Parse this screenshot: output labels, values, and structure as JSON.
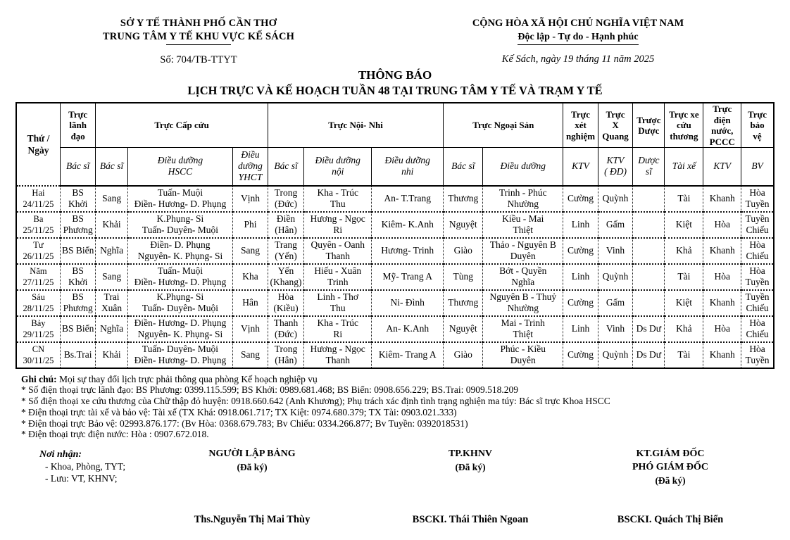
{
  "header": {
    "org_line1": "SỞ Y TẾ THÀNH PHỐ CẦN THƠ",
    "org_line2": "TRUNG TÂM Y TẾ KHU VỰC KẾ SÁCH",
    "doc_number": "Số:  704/TB-TTYT",
    "motto_line1": "CỘNG HÒA XÃ HỘI CHỦ NGHĨA VIỆT NAM",
    "motto_line2": "Độc lập - Tự do - Hạnh phúc",
    "date_line": "Kế Sách, ngày  19 tháng  11 năm 2025"
  },
  "title": {
    "line1": "THÔNG BÁO",
    "line2": "LỊCH TRỰC VÀ KẾ HOẠCH TUẦN 48 TẠI TRUNG TÂM Y TẾ VÀ TRẠM Y TẾ"
  },
  "table": {
    "col_day": "Thứ /\nNgày",
    "groups": [
      {
        "label": "Trực\nlãnh\nđạo",
        "cols": 1
      },
      {
        "label": "Trực Cấp cứu",
        "cols": 3
      },
      {
        "label": "Trực Nội- Nhi",
        "cols": 3
      },
      {
        "label": "Trực Ngoại Sản",
        "cols": 2
      },
      {
        "label": "Trực\nxét\nnghiệm",
        "cols": 1
      },
      {
        "label": "Trực\nX\nQuang",
        "cols": 1
      },
      {
        "label": "Trược\nDược",
        "cols": 1
      },
      {
        "label": "Trực xe\ncứu\nthương",
        "cols": 1
      },
      {
        "label": "Trực\nđiện\nnước,\nPCCC",
        "cols": 1
      },
      {
        "label": "Trực\nbảo\nvệ",
        "cols": 1
      }
    ],
    "subheads": [
      "Bác sĩ",
      "Bác sĩ",
      "Điều dưỡng\nHSCC",
      "Điều\ndưỡng\nYHCT",
      "Bác sĩ",
      "Điều dưỡng\nnội",
      "Điều dưỡng\nnhi",
      "Bác sĩ",
      "Điều dưỡng",
      "KTV",
      "KTV\n( ĐD)",
      "Dược\nsĩ",
      "Tài xế",
      "KTV",
      "BV"
    ],
    "rows": [
      {
        "day": "Hai\n24/11/25",
        "cells": [
          "BS\nKhởi",
          "Sang",
          "Tuấn- Muội\nĐiền- Hương- D. Phụng",
          "Vịnh",
          "Trong\n(Đức)",
          "Kha - Trúc\nThu",
          "An- T.Trang",
          "Thương",
          "Trinh - Phúc\nNhường",
          "Cường",
          "Quỳnh",
          "",
          "Tài",
          "Khanh",
          "Hòa\nTuyền"
        ]
      },
      {
        "day": "Ba\n25/11/25",
        "cells": [
          "BS\nPhương",
          "Khải",
          "K.Phụng- Si\nTuấn- Duyên- Muội",
          "Phi",
          "Điền\n(Hân)",
          "Hương - Ngọc\nRi",
          "Kiêm- K.Anh",
          "Nguyệt",
          "Kiều - Mai\nThiệt",
          "Linh",
          "Gấm",
          "",
          "Kiệt",
          "Hòa",
          "Tuyền\nChiếu"
        ]
      },
      {
        "day": "Tư\n26/11/25",
        "cells": [
          "BS Biển",
          "Nghĩa",
          "Điền- D. Phụng\nNguyên- K. Phụng- Si",
          "Sang",
          "Trang\n(Yến)",
          "Quyên - Oanh\nThanh",
          "Hương- Trinh",
          "Giào",
          "Thảo - Nguyên B\nDuyên",
          "Cường",
          "Vinh",
          "",
          "Khả",
          "Khanh",
          "Hòa\nChiếu"
        ]
      },
      {
        "day": "Năm\n27/11/25",
        "cells": [
          "BS\nKhởi",
          "Sang",
          "Tuấn- Muội\nĐiền- Hương- D. Phụng",
          "Kha",
          "Yến\n(Khang)",
          "Hiếu - Xuân\nTrinh",
          "Mỹ- Trang A",
          "Tùng",
          "Bớt - Quyền\nNghĩa",
          "Linh",
          "Quỳnh",
          "",
          "Tài",
          "Hòa",
          "Hòa\nTuyền"
        ]
      },
      {
        "day": "Sáu\n28/11/25",
        "cells": [
          "BS\nPhương",
          "Trai\nXuân",
          "K.Phụng- Si\nTuấn- Duyên- Muội",
          "Hân",
          "Hòa\n(Kiều)",
          "Linh - Thơ\nThu",
          "Ni- Đình",
          "Thương",
          "Nguyên B - Thuỷ\nNhường",
          "Cường",
          "Gấm",
          "",
          "Kiệt",
          "Khanh",
          "Tuyền\nChiếu"
        ]
      },
      {
        "day": "Bảy\n29/11/25",
        "cells": [
          "BS Biển",
          "Nghĩa",
          "Điền- Hương- D. Phụng\nNguyên- K. Phụng- Si",
          "Vịnh",
          "Thanh\n(Đức)",
          "Kha - Trúc\nRi",
          "An- K.Anh",
          "Nguyệt",
          "Mai - Trinh\nThiệt",
          "Linh",
          "Vinh",
          "Ds Dư",
          "Khả",
          "Hòa",
          "Hòa\nChiếu"
        ]
      },
      {
        "day": "CN\n30/11/25",
        "cells": [
          "Bs.Trai",
          "Khải",
          "Tuấn- Duyên- Muội\nĐiền- Hương- D. Phụng",
          "Sang",
          "Trong\n(Hân)",
          "Hương - Ngọc\nThanh",
          "Kiêm- Trang A",
          "Giào",
          "Phúc - Kiều\nDuyên",
          "Cường",
          "Quỳnh",
          "Ds Dư",
          "Tài",
          "Khanh",
          "Hòa\nTuyền"
        ]
      }
    ]
  },
  "notes": [
    {
      "bold": "Ghi chú:",
      "text": " Mọi sự thay đổi lịch trực phải thông qua phòng Kế hoạch nghiệp vụ"
    },
    {
      "bold": "",
      "text": "* Số điện thoại trực lãnh đạo: BS Phương: 0399.115.599; BS Khởi:  0989.681.468; BS Biển: 0908.656.229; BS.Trai: 0909.518.209"
    },
    {
      "bold": "",
      "text": "* Số điện thoại xe cứu thương của Chữ thập đỏ huyện: 0918.660.642 (Anh Khương); Phụ trách xác định tình trạng nghiện ma túy: Bác sĩ trực Khoa HSCC"
    },
    {
      "bold": "",
      "text": "* Điện thoại trực tài xế và bảo vệ: Tài  xế (TX  Khá: 0918.061.717;  TX Kiệt: 0974.680.379; TX Tài: 0903.021.333)"
    },
    {
      "bold": "",
      "text": "* Điện thoại trực Bảo vệ: 02993.876.177: (Bv Hòa: 0368.679.783; Bv Chiếu: 0334.266.877; Bv Tuyền: 0392018531)"
    },
    {
      "bold": "",
      "text": "* Điện thoại trực điện nước: Hòa : 0907.672.018."
    }
  ],
  "signatures": {
    "noi_nhan_title": "Nơi nhận:",
    "noi_nhan_items": [
      "- Khoa, Phòng, TYT;",
      "- Lưu: VT, KHNV;"
    ],
    "blocks": [
      {
        "title": "NGƯỜI LẬP BẢNG",
        "subtitle": "",
        "signed": "(Đã ký)",
        "name": "Ths.Nguyễn Thị Mai Thùy"
      },
      {
        "title": "TP.KHNV",
        "subtitle": "",
        "signed": "(Đã ký)",
        "name": "BSCKI. Thái Thiên Ngoan"
      },
      {
        "title": "KT.GIÁM ĐỐC",
        "subtitle": "PHÓ GIÁM ĐỐC",
        "signed": "(Đã ký)",
        "name": "BSCKI. Quách Thị Biển"
      }
    ]
  }
}
